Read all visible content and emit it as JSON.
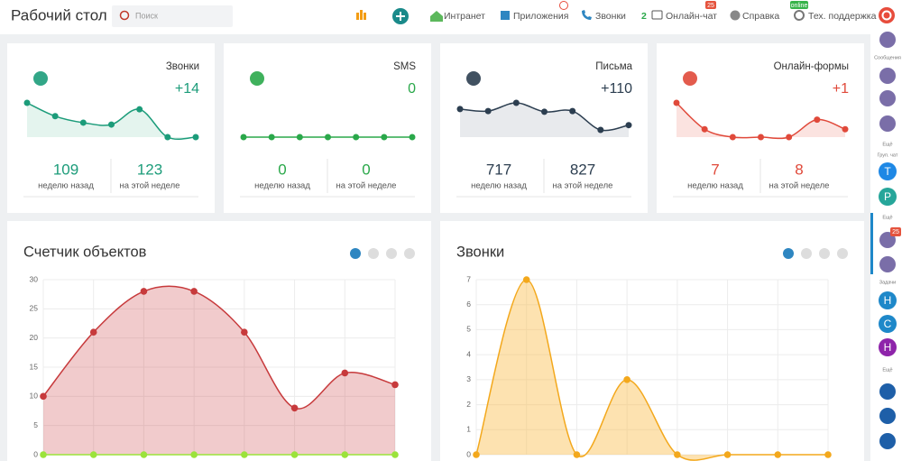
{
  "header": {
    "title": "Рабочий стол",
    "search_placeholder": "Поиск",
    "nav": [
      "Интранет",
      "Приложения",
      "Звонки",
      "2",
      "Онлайн-чат",
      "Справка",
      "Тех. поддержка"
    ],
    "badges": [
      "25",
      "online"
    ]
  },
  "cards": [
    {
      "title": "Звонки",
      "delta": "+14",
      "last_week": "109",
      "last_week_label": "неделю назад",
      "this_week": "123",
      "this_week_label": "на этой неделе",
      "color": "#1c9c7a",
      "fill": "#e4f4ee",
      "sparkline": [
        9,
        5.5,
        3.8,
        3.3,
        7.3,
        0,
        0
      ]
    },
    {
      "title": "SMS",
      "delta": "0",
      "last_week": "0",
      "last_week_label": "неделю назад",
      "this_week": "0",
      "this_week_label": "на этой неделе",
      "color": "#2aa84a",
      "fill": "#e6f5e9",
      "sparkline": [
        0,
        0,
        0,
        0,
        0,
        0,
        0
      ]
    },
    {
      "title": "Письма",
      "delta": "+110",
      "last_week": "717",
      "last_week_label": "неделю назад",
      "this_week": "827",
      "this_week_label": "на этой неделе",
      "color": "#2c3e50",
      "fill": "#e8eaed",
      "sparkline": [
        8.2,
        7.6,
        10,
        7.4,
        7.6,
        2.1,
        3.5
      ]
    },
    {
      "title": "Онлайн-формы",
      "delta": "+1",
      "last_week": "7",
      "last_week_label": "неделю назад",
      "this_week": "8",
      "this_week_label": "на этой неделе",
      "color": "#e0493a",
      "fill": "#fbe3e0",
      "sparkline": [
        10,
        2.3,
        0,
        0,
        0,
        5.1,
        2.3
      ]
    }
  ],
  "charts": [
    {
      "type": "line",
      "title": "Счетчик объектов",
      "ylim": [
        0,
        30
      ],
      "yticks": [
        0,
        5,
        10,
        15,
        20,
        25,
        30
      ],
      "series": [
        {
          "color": "#c73a3c",
          "fill": "rgba(205,70,72,0.28)",
          "values": [
            10,
            21,
            28,
            28,
            21,
            8,
            14,
            12
          ]
        },
        {
          "color": "#9be33b",
          "values": [
            0,
            0,
            0,
            0,
            0,
            0,
            0,
            0
          ]
        }
      ]
    },
    {
      "type": "line",
      "title": "Звонки",
      "ylim": [
        0,
        7
      ],
      "yticks": [
        0,
        1,
        2,
        3,
        4,
        5,
        6,
        7
      ],
      "series": [
        {
          "color": "#f3a81c",
          "fill": "rgba(250,190,80,0.45)",
          "values": [
            0,
            7,
            0,
            3,
            0,
            0,
            0,
            0
          ]
        }
      ]
    }
  ],
  "sidebar": [
    "Сообщения",
    "Ещё",
    "Груп. чат",
    "Т",
    "Р",
    "Ещё",
    "25",
    "Задачи",
    "Н",
    "С",
    "Н",
    "Ещё"
  ]
}
